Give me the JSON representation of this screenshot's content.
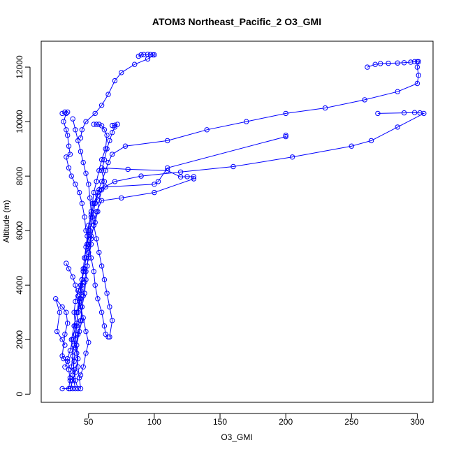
{
  "chart_data": {
    "type": "scatter",
    "title": "ATOM3 Northeast_Pacific_2 O3_GMI",
    "xlabel": "O3_GMI",
    "ylabel": "Altitude (m)",
    "xlim": [
      14,
      312
    ],
    "ylim": [
      -300,
      12950
    ],
    "x_ticks": [
      50,
      100,
      150,
      200,
      250,
      300
    ],
    "y_ticks": [
      0,
      2000,
      4000,
      6000,
      8000,
      10000,
      12000
    ],
    "grid": false,
    "legend": "none",
    "style": {
      "series_color": "#0000ff",
      "marker": "open-circle",
      "line": "solid",
      "frame_color": "#000000"
    },
    "series": [
      {
        "points": [
          [
            30,
            200
          ],
          [
            36,
            200
          ],
          [
            38,
            500
          ],
          [
            40,
            800
          ],
          [
            42,
            1300
          ],
          [
            41,
            1800
          ],
          [
            43,
            2300
          ],
          [
            45,
            2700
          ],
          [
            44,
            3200
          ],
          [
            46,
            3600
          ],
          [
            47,
            4100
          ],
          [
            48,
            4500
          ],
          [
            50,
            5000
          ],
          [
            52,
            5500
          ],
          [
            51,
            6000
          ],
          [
            53,
            6500
          ],
          [
            55,
            7000
          ],
          [
            57,
            7400
          ],
          [
            60,
            7800
          ],
          [
            63,
            8200
          ],
          [
            65,
            8500
          ],
          [
            68,
            8800
          ],
          [
            78,
            9100
          ],
          [
            110,
            9300
          ],
          [
            140,
            9700
          ],
          [
            170,
            10000
          ],
          [
            200,
            10300
          ],
          [
            230,
            10500
          ],
          [
            260,
            10800
          ],
          [
            285,
            11100
          ],
          [
            300,
            11400
          ],
          [
            301,
            11700
          ],
          [
            300,
            12000
          ],
          [
            301,
            12200
          ],
          [
            300,
            12200
          ],
          [
            298,
            12200
          ],
          [
            295,
            12180
          ],
          [
            290,
            12160
          ],
          [
            285,
            12150
          ],
          [
            278,
            12140
          ],
          [
            272,
            12130
          ],
          [
            268,
            12100
          ],
          [
            262,
            12000
          ]
        ]
      },
      {
        "points": [
          [
            42,
            200
          ],
          [
            40,
            500
          ],
          [
            39,
            900
          ],
          [
            38,
            1400
          ],
          [
            37,
            2000
          ],
          [
            39,
            2500
          ],
          [
            41,
            3000
          ],
          [
            43,
            3500
          ],
          [
            44,
            4000
          ],
          [
            46,
            4500
          ],
          [
            47,
            5000
          ],
          [
            49,
            5500
          ],
          [
            50,
            6000
          ],
          [
            52,
            6500
          ],
          [
            54,
            7000
          ],
          [
            58,
            7500
          ],
          [
            70,
            7800
          ],
          [
            90,
            8000
          ],
          [
            120,
            8150
          ],
          [
            160,
            8350
          ],
          [
            205,
            8700
          ],
          [
            250,
            9100
          ],
          [
            265,
            9300
          ],
          [
            285,
            9800
          ],
          [
            305,
            10300
          ],
          [
            302,
            10320
          ],
          [
            298,
            10330
          ],
          [
            290,
            10320
          ],
          [
            270,
            10300
          ]
        ]
      },
      {
        "points": [
          [
            40,
            200
          ],
          [
            38,
            700
          ],
          [
            39,
            1200
          ],
          [
            40,
            1700
          ],
          [
            42,
            2200
          ],
          [
            44,
            2700
          ],
          [
            45,
            3200
          ],
          [
            47,
            3700
          ],
          [
            48,
            4200
          ],
          [
            49,
            4700
          ],
          [
            50,
            5200
          ],
          [
            52,
            5700
          ],
          [
            54,
            6200
          ],
          [
            56,
            6700
          ],
          [
            60,
            7100
          ],
          [
            75,
            7200
          ],
          [
            100,
            7400
          ],
          [
            130,
            7900
          ],
          [
            130,
            7980
          ],
          [
            125,
            7980
          ],
          [
            120,
            7970
          ],
          [
            110,
            8200
          ],
          [
            80,
            8250
          ],
          [
            60,
            8300
          ]
        ]
      },
      {
        "points": [
          [
            44,
            200
          ],
          [
            43,
            600
          ],
          [
            42,
            1000
          ],
          [
            41,
            1500
          ],
          [
            40,
            2000
          ],
          [
            41,
            2500
          ],
          [
            42,
            3000
          ],
          [
            44,
            3500
          ],
          [
            45,
            4000
          ],
          [
            46,
            4500
          ],
          [
            47,
            5000
          ],
          [
            49,
            5500
          ],
          [
            51,
            6000
          ],
          [
            53,
            6500
          ],
          [
            55,
            7000
          ],
          [
            57,
            7300
          ],
          [
            63,
            7600
          ],
          [
            100,
            7700
          ],
          [
            103,
            7800
          ],
          [
            110,
            8300
          ],
          [
            200,
            9450
          ],
          [
            200,
            9500
          ]
        ]
      },
      {
        "points": [
          [
            38,
            200
          ],
          [
            36,
            500
          ],
          [
            35,
            900
          ],
          [
            34,
            1300
          ],
          [
            36,
            1600
          ],
          [
            38,
            2000
          ],
          [
            40,
            2500
          ],
          [
            39,
            3000
          ],
          [
            40,
            3400
          ],
          [
            42,
            3800
          ],
          [
            45,
            4200
          ],
          [
            47,
            4600
          ],
          [
            48,
            5000
          ],
          [
            50,
            5400
          ],
          [
            52,
            5800
          ],
          [
            55,
            6300
          ],
          [
            57,
            6700
          ],
          [
            58,
            7100
          ],
          [
            60,
            7500
          ],
          [
            62,
            7800
          ],
          [
            60,
            8200
          ],
          [
            62,
            8600
          ],
          [
            64,
            9000
          ],
          [
            66,
            9300
          ],
          [
            68,
            9600
          ],
          [
            70,
            9800
          ],
          [
            72,
            9900
          ],
          [
            70,
            9870
          ],
          [
            68,
            9860
          ]
        ]
      },
      {
        "points": [
          [
            32,
            1000
          ],
          [
            34,
            1200
          ],
          [
            31,
            1300
          ],
          [
            30,
            1400
          ],
          [
            32,
            2200
          ],
          [
            34,
            2600
          ],
          [
            33,
            3000
          ],
          [
            30,
            3200
          ],
          [
            25,
            3500
          ],
          [
            28,
            3000
          ],
          [
            26,
            2300
          ],
          [
            30,
            2000
          ],
          [
            32,
            1800
          ]
        ]
      },
      {
        "points": [
          [
            30,
            10300
          ],
          [
            32,
            10350
          ],
          [
            34,
            10350
          ],
          [
            33,
            10300
          ],
          [
            31,
            10000
          ],
          [
            33,
            9700
          ],
          [
            34,
            9500
          ],
          [
            35,
            9100
          ],
          [
            36,
            8800
          ],
          [
            33,
            8700
          ],
          [
            35,
            8300
          ],
          [
            37,
            8000
          ],
          [
            40,
            7700
          ],
          [
            43,
            7400
          ],
          [
            45,
            7000
          ],
          [
            47,
            6500
          ],
          [
            48,
            6000
          ],
          [
            50,
            5500
          ],
          [
            52,
            5000
          ],
          [
            54,
            4500
          ],
          [
            55,
            4000
          ],
          [
            57,
            3500
          ],
          [
            60,
            3000
          ],
          [
            62,
            2500
          ],
          [
            63,
            2200
          ],
          [
            65,
            2100
          ]
        ]
      },
      {
        "points": [
          [
            88,
            12400
          ],
          [
            90,
            12450
          ],
          [
            92,
            12460
          ],
          [
            95,
            12470
          ],
          [
            97,
            12460
          ],
          [
            99,
            12450
          ],
          [
            100,
            12450
          ],
          [
            95,
            12300
          ],
          [
            85,
            12100
          ],
          [
            75,
            11800
          ],
          [
            70,
            11500
          ],
          [
            65,
            11000
          ],
          [
            60,
            10600
          ],
          [
            55,
            10300
          ],
          [
            48,
            10000
          ],
          [
            45,
            9700
          ],
          [
            44,
            9400
          ]
        ]
      },
      {
        "points": [
          [
            33,
            4800
          ],
          [
            35,
            4600
          ],
          [
            38,
            4300
          ],
          [
            40,
            4000
          ],
          [
            42,
            3600
          ],
          [
            44,
            3200
          ],
          [
            46,
            2800
          ],
          [
            48,
            2300
          ],
          [
            50,
            1900
          ],
          [
            48,
            1500
          ],
          [
            46,
            1000
          ],
          [
            44,
            700
          ]
        ]
      },
      {
        "points": [
          [
            38,
            10100
          ],
          [
            40,
            9700
          ],
          [
            42,
            9300
          ],
          [
            44,
            8900
          ],
          [
            46,
            8500
          ],
          [
            48,
            8100
          ],
          [
            50,
            7700
          ],
          [
            51,
            7200
          ],
          [
            52,
            6700
          ],
          [
            54,
            6200
          ],
          [
            56,
            5700
          ],
          [
            58,
            5200
          ],
          [
            60,
            4700
          ],
          [
            62,
            4200
          ],
          [
            64,
            3700
          ],
          [
            66,
            3200
          ],
          [
            68,
            2700
          ],
          [
            66,
            2100
          ]
        ]
      },
      {
        "points": [
          [
            54,
            9900
          ],
          [
            56,
            9900
          ],
          [
            58,
            9900
          ],
          [
            60,
            9850
          ],
          [
            62,
            9700
          ],
          [
            64,
            9500
          ],
          [
            63,
            9000
          ],
          [
            60,
            8600
          ],
          [
            58,
            8200
          ],
          [
            56,
            7800
          ],
          [
            54,
            7400
          ],
          [
            53,
            7000
          ],
          [
            52,
            6600
          ],
          [
            50,
            6200
          ],
          [
            49,
            5800
          ],
          [
            48,
            5400
          ],
          [
            47,
            5000
          ],
          [
            46,
            4600
          ],
          [
            45,
            4200
          ],
          [
            44,
            3800
          ],
          [
            43,
            3400
          ],
          [
            42,
            3000
          ],
          [
            41,
            2600
          ],
          [
            40,
            2200
          ],
          [
            39,
            1800
          ],
          [
            38,
            1400
          ],
          [
            37,
            1000
          ],
          [
            36,
            600
          ],
          [
            35,
            200
          ]
        ]
      }
    ]
  }
}
